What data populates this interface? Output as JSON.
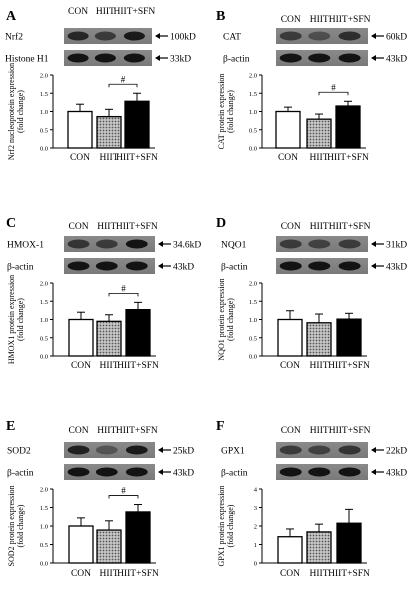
{
  "groups": [
    "CON",
    "HIIT",
    "HIIT+SFN"
  ],
  "panels": [
    {
      "letter": "A",
      "blot_top": {
        "label": "Nrf2",
        "marker": "100kD",
        "intensity": [
          0.7,
          0.55,
          0.8
        ]
      },
      "blot_bottom": {
        "label": "Histone H1",
        "marker": "33kD",
        "intensity": [
          0.85,
          0.85,
          0.85
        ]
      },
      "ylabel_line1": "Nrf2 nucleoprotein expression",
      "ylabel_line2": "(fold change)",
      "yticks": [
        "0.0",
        "0.5",
        "1.0",
        "1.5",
        "2.0"
      ],
      "ylim": [
        0,
        2.0
      ],
      "sig": "#",
      "sig_between": [
        1,
        2
      ]
    },
    {
      "letter": "B",
      "blot_top": {
        "label": "CAT",
        "marker": "60kD",
        "intensity": [
          0.55,
          0.4,
          0.65
        ]
      },
      "blot_bottom": {
        "label": "β-actin",
        "marker": "43kD",
        "intensity": [
          0.85,
          0.85,
          0.85
        ]
      },
      "ylabel_line1": "CAT protein expression",
      "ylabel_line2": "(fold change)",
      "yticks": [
        "0.0",
        "0.5",
        "1.0",
        "1.5",
        "2.0"
      ],
      "ylim": [
        0,
        2.0
      ],
      "sig": "#",
      "sig_between": [
        1,
        2
      ]
    },
    {
      "letter": "C",
      "blot_top": {
        "label": "HMOX-1",
        "marker": "34.6kD",
        "intensity": [
          0.6,
          0.55,
          0.85
        ]
      },
      "blot_bottom": {
        "label": "β-actin",
        "marker": "43kD",
        "intensity": [
          0.85,
          0.85,
          0.85
        ]
      },
      "ylabel_line1": "HMOX1 protein expression",
      "ylabel_line2": "(fold change)",
      "yticks": [
        "0.0",
        "0.5",
        "1.0",
        "1.5",
        "2.0"
      ],
      "ylim": [
        0,
        2.0
      ],
      "sig": "#",
      "sig_between": [
        1,
        2
      ]
    },
    {
      "letter": "D",
      "blot_top": {
        "label": "NQO1",
        "marker": "31kD",
        "intensity": [
          0.55,
          0.5,
          0.55
        ]
      },
      "blot_bottom": {
        "label": "β-actin",
        "marker": "43kD",
        "intensity": [
          0.85,
          0.85,
          0.85
        ]
      },
      "ylabel_line1": "NQO1 protein expression",
      "ylabel_line2": "(fold change)",
      "yticks": [
        "0.0",
        "0.5",
        "1.0",
        "1.5",
        "2.0"
      ],
      "ylim": [
        0,
        2.0
      ],
      "sig": "",
      "sig_between": null
    },
    {
      "letter": "E",
      "blot_top": {
        "label": "SOD2",
        "marker": "25kD",
        "intensity": [
          0.75,
          0.35,
          0.8
        ]
      },
      "blot_bottom": {
        "label": "β-actin",
        "marker": "43kD",
        "intensity": [
          0.85,
          0.85,
          0.85
        ]
      },
      "ylabel_line1": "SOD2 protein expression",
      "ylabel_line2": "(fold change)",
      "yticks": [
        "0.0",
        "0.5",
        "1.0",
        "1.5",
        "2.0"
      ],
      "ylim": [
        0,
        2.0
      ],
      "sig": "#",
      "sig_between": [
        1,
        2
      ]
    },
    {
      "letter": "F",
      "blot_top": {
        "label": "GPX1",
        "marker": "22kD",
        "intensity": [
          0.55,
          0.5,
          0.6
        ]
      },
      "blot_bottom": {
        "label": "β-actin",
        "marker": "43kD",
        "intensity": [
          0.85,
          0.85,
          0.85
        ]
      },
      "ylabel_line1": "GPX1 protein expression",
      "ylabel_line2": "(fold change)",
      "yticks": [
        "0",
        "1",
        "2",
        "3",
        "4"
      ],
      "ylim": [
        0,
        4
      ],
      "sig": "",
      "sig_between": null
    }
  ],
  "chart_data": [
    {
      "type": "bar",
      "categories": [
        "CON",
        "HIIT",
        "HIIT+SFN"
      ],
      "series": [
        {
          "values": [
            1.0,
            0.86,
            1.28
          ],
          "errors": [
            0.2,
            0.2,
            0.22
          ]
        }
      ],
      "ylabel": "Nrf2 nucleoprotein expression (fold change)",
      "ylim": [
        0,
        2.0
      ]
    },
    {
      "type": "bar",
      "categories": [
        "CON",
        "HIIT",
        "HIIT+SFN"
      ],
      "series": [
        {
          "values": [
            1.0,
            0.79,
            1.15
          ],
          "errors": [
            0.12,
            0.14,
            0.13
          ]
        }
      ],
      "ylabel": "CAT protein expression (fold change)",
      "ylim": [
        0,
        2.0
      ]
    },
    {
      "type": "bar",
      "categories": [
        "CON",
        "HIIT",
        "HIIT+SFN"
      ],
      "series": [
        {
          "values": [
            1.0,
            0.95,
            1.27
          ],
          "errors": [
            0.2,
            0.18,
            0.2
          ]
        }
      ],
      "ylabel": "HMOX1 protein expression (fold change)",
      "ylim": [
        0,
        2.0
      ]
    },
    {
      "type": "bar",
      "categories": [
        "CON",
        "HIIT",
        "HIIT+SFN"
      ],
      "series": [
        {
          "values": [
            1.0,
            0.91,
            1.01
          ],
          "errors": [
            0.24,
            0.24,
            0.16
          ]
        }
      ],
      "ylabel": "NQO1 protein expression (fold change)",
      "ylim": [
        0,
        2.0
      ]
    },
    {
      "type": "bar",
      "categories": [
        "CON",
        "HIIT",
        "HIIT+SFN"
      ],
      "series": [
        {
          "values": [
            1.0,
            0.89,
            1.38
          ],
          "errors": [
            0.22,
            0.25,
            0.2
          ]
        }
      ],
      "ylabel": "SOD2 protein expression (fold change)",
      "ylim": [
        0,
        2.0
      ]
    },
    {
      "type": "bar",
      "categories": [
        "CON",
        "HIIT",
        "HIIT+SFN"
      ],
      "series": [
        {
          "values": [
            1.42,
            1.68,
            2.15
          ],
          "errors": [
            0.42,
            0.42,
            0.75
          ]
        }
      ],
      "ylabel": "GPX1 protein expression (fold change)",
      "ylim": [
        0,
        4
      ]
    }
  ],
  "colors": {
    "con": "#ffffff",
    "hiit": "#9a9a9a",
    "sfn": "#000000"
  }
}
